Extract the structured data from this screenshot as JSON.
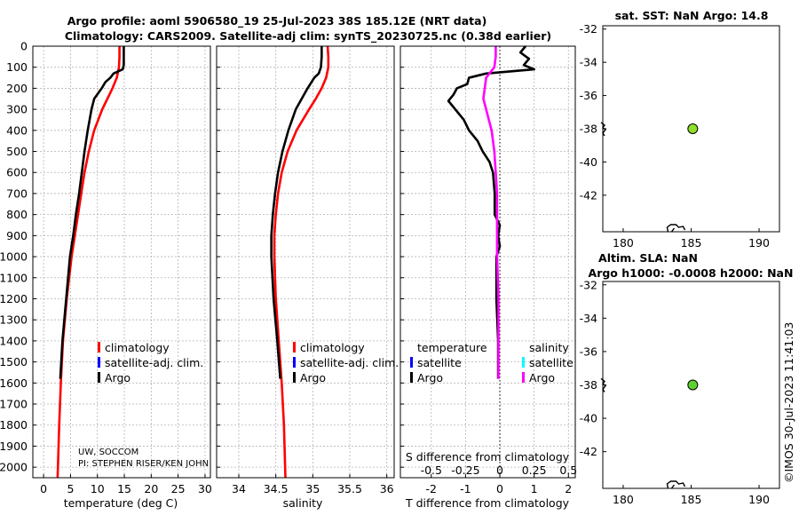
{
  "title": {
    "line1": "Argo profile: aoml 5906580_19 25-Jul-2023 38S 185.12E (NRT data)",
    "line2": "Climatology: CARS2009. Satellite-adj clim: synTS_20230725.nc (0.38d earlier)"
  },
  "colors": {
    "climatology": "#ff0000",
    "satellite_adj": "#0000ff",
    "argo": "#000000",
    "salinity_diff": "#ff00ff",
    "salinity_sat": "#00ffff",
    "marker_fill": "#8ede2b",
    "marker_fill2": "#5fd130",
    "grid": "#b4b4b4"
  },
  "chart_data": [
    {
      "type": "line",
      "panel": "temperature",
      "xlabel": "temperature (deg C)",
      "ylabel": "",
      "xlim": [
        -2,
        31
      ],
      "ylim": [
        2050,
        0
      ],
      "xticks": [
        "0",
        "5",
        "10",
        "15",
        "20",
        "25",
        "30"
      ],
      "yticks": [
        "0",
        "100",
        "200",
        "300",
        "400",
        "500",
        "600",
        "700",
        "800",
        "900",
        "1000",
        "1100",
        "1200",
        "1300",
        "1400",
        "1500",
        "1600",
        "1700",
        "1800",
        "1900",
        "2000"
      ],
      "legend": [
        "climatology",
        "satellite-adj. clim.",
        "Argo"
      ],
      "annotation": [
        "UW, SOCCOM",
        "PI: STEPHEN RISER/KEN JOHN"
      ],
      "series": [
        {
          "name": "climatology",
          "depth": [
            0,
            50,
            100,
            150,
            200,
            300,
            400,
            500,
            600,
            700,
            800,
            900,
            1000,
            1200,
            1400,
            1600,
            1800,
            2050
          ],
          "values": [
            14.1,
            14.1,
            14.0,
            13.6,
            12.8,
            10.9,
            9.4,
            8.4,
            7.6,
            7.0,
            6.4,
            5.8,
            5.2,
            4.3,
            3.6,
            3.2,
            2.9,
            2.6
          ]
        },
        {
          "name": "Argo",
          "depth": [
            0,
            50,
            90,
            110,
            130,
            150,
            170,
            200,
            250,
            300,
            400,
            500,
            600,
            700,
            800,
            900,
            1000,
            1200,
            1400,
            1580
          ],
          "values": [
            14.9,
            14.9,
            14.9,
            14.7,
            13.0,
            12.4,
            11.5,
            10.8,
            9.4,
            8.9,
            8.2,
            7.6,
            7.1,
            6.6,
            6.0,
            5.5,
            4.9,
            4.2,
            3.5,
            3.1
          ]
        }
      ]
    },
    {
      "type": "line",
      "panel": "salinity",
      "xlabel": "salinity",
      "xlim": [
        33.7,
        36.1
      ],
      "ylim": [
        2050,
        0
      ],
      "xticks": [
        "34",
        "34.5",
        "35",
        "35.5",
        "36"
      ],
      "legend": [
        "climatology",
        "satellite-adj. clim.",
        "Argo"
      ],
      "series": [
        {
          "name": "climatology",
          "depth": [
            0,
            50,
            100,
            150,
            200,
            250,
            300,
            400,
            500,
            600,
            700,
            800,
            900,
            1000,
            1100,
            1200,
            1400,
            1600,
            1800,
            2050
          ],
          "values": [
            35.2,
            35.21,
            35.21,
            35.18,
            35.12,
            35.04,
            34.95,
            34.78,
            34.66,
            34.58,
            34.53,
            34.5,
            34.48,
            34.48,
            34.49,
            34.5,
            34.54,
            34.58,
            34.61,
            34.63
          ]
        },
        {
          "name": "Argo",
          "depth": [
            0,
            50,
            100,
            130,
            150,
            200,
            250,
            300,
            400,
            500,
            600,
            700,
            800,
            900,
            1000,
            1200,
            1400,
            1580
          ],
          "values": [
            35.12,
            35.12,
            35.11,
            35.08,
            35.02,
            34.93,
            34.85,
            34.77,
            34.67,
            34.59,
            34.53,
            34.49,
            34.46,
            34.44,
            34.44,
            34.47,
            34.52,
            34.56
          ]
        }
      ]
    },
    {
      "type": "line",
      "panel": "difference",
      "xlabel": "T difference from climatology",
      "toplabel": "S difference from climatology",
      "xlim": [
        -2.9,
        2.2
      ],
      "ylim": [
        2050,
        0
      ],
      "xticks": [
        "-2",
        "-1",
        "0",
        "1",
        "2"
      ],
      "topticks": [
        "-0.5",
        "-0.25",
        "0",
        "0.25",
        "0.5"
      ],
      "legend_left": [
        "temperature",
        "satellite",
        "Argo"
      ],
      "legend_right": [
        "salinity",
        "satellite",
        "Argo"
      ],
      "series": [
        {
          "name": "temperature Argo",
          "depth": [
            0,
            30,
            60,
            90,
            110,
            130,
            150,
            180,
            200,
            230,
            260,
            300,
            350,
            400,
            450,
            500,
            550,
            600,
            700,
            800,
            850,
            900,
            950,
            1000,
            1200,
            1400,
            1580
          ],
          "values": [
            0.75,
            0.6,
            0.85,
            0.7,
            1.0,
            -0.4,
            -0.9,
            -0.95,
            -1.25,
            -1.35,
            -1.5,
            -1.3,
            -1.05,
            -0.9,
            -0.65,
            -0.5,
            -0.3,
            -0.2,
            -0.15,
            -0.15,
            0.0,
            -0.05,
            0.0,
            -0.1,
            -0.1,
            -0.05,
            -0.05
          ]
        },
        {
          "name": "salinity Argo",
          "depth": [
            0,
            50,
            100,
            150,
            200,
            250,
            300,
            400,
            500,
            600,
            700,
            800,
            900,
            1000,
            1200,
            1400,
            1580
          ],
          "values": [
            -0.03,
            -0.03,
            -0.04,
            -0.1,
            -0.11,
            -0.12,
            -0.1,
            -0.06,
            -0.04,
            -0.03,
            -0.02,
            -0.02,
            -0.02,
            -0.02,
            -0.01,
            -0.01,
            -0.01
          ]
        }
      ]
    },
    {
      "type": "scatter",
      "panel": "sst-map",
      "title": "sat. SST: NaN Argo: 14.8",
      "xlim": [
        178.5,
        191.5
      ],
      "ylim": [
        -44.2,
        -31.8
      ],
      "xticks": [
        "180",
        "185",
        "190"
      ],
      "yticks": [
        "-32",
        "-34",
        "-36",
        "-38",
        "-40",
        "-42"
      ],
      "points": [
        {
          "x": 185.12,
          "y": -38.0
        }
      ]
    },
    {
      "type": "scatter",
      "panel": "sla-map",
      "title_line1": "Altim. SLA: NaN",
      "title_line2": "Argo h1000: -0.0008 h2000: NaN",
      "xlim": [
        178.5,
        191.5
      ],
      "ylim": [
        -44.2,
        -31.8
      ],
      "xticks": [
        "180",
        "185",
        "190"
      ],
      "yticks": [
        "-32",
        "-34",
        "-36",
        "-38",
        "-40",
        "-42"
      ],
      "points": [
        {
          "x": 185.12,
          "y": -38.0
        }
      ]
    }
  ],
  "credit": "©IMOS 30-Jul-2023 11:41:03"
}
